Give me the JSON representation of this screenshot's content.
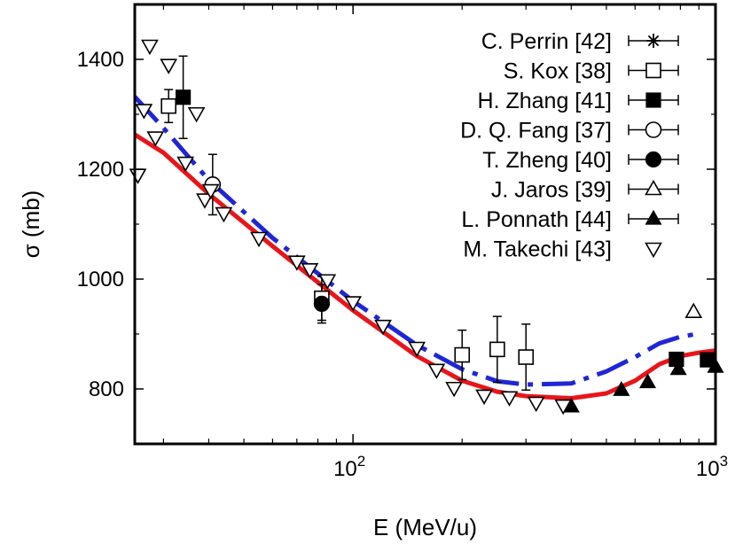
{
  "chart_data": {
    "type": "scatter",
    "x_scale": "log",
    "xlim": [
      25,
      1000
    ],
    "ylim": [
      700,
      1500
    ],
    "xlabel": "E (MeV/u)",
    "ylabel": "σ (mb)",
    "x_ticks": [
      {
        "value": 100,
        "base": "10",
        "exp": "2"
      },
      {
        "value": 1000,
        "base": "10",
        "exp": "3"
      }
    ],
    "y_ticks": [
      {
        "value": 800,
        "label": "800"
      },
      {
        "value": 1000,
        "label": "1000"
      },
      {
        "value": 1200,
        "label": "1200"
      },
      {
        "value": 1400,
        "label": "1400"
      }
    ],
    "series": [
      {
        "name": "C. Perrin [42]",
        "marker": "asterisk",
        "points": []
      },
      {
        "name": "S. Kox [38]",
        "marker": "square-open",
        "points": [
          [
            31,
            1315,
            30
          ],
          [
            82,
            965,
            40
          ],
          [
            200,
            862,
            45
          ],
          [
            250,
            872,
            60
          ],
          [
            300,
            858,
            60
          ]
        ]
      },
      {
        "name": "H. Zhang [41]",
        "marker": "square-filled",
        "points": [
          [
            34,
            1331,
            75
          ],
          [
            780,
            854,
            0
          ],
          [
            950,
            853,
            0
          ]
        ]
      },
      {
        "name": "D. Q. Fang [37]",
        "marker": "circle-open",
        "points": [
          [
            41,
            1172,
            55
          ]
        ]
      },
      {
        "name": "T. Zheng [40]",
        "marker": "circle-filled",
        "points": [
          [
            82,
            955,
            35
          ]
        ]
      },
      {
        "name": "J. Jaros [39]",
        "marker": "triangle-up-open",
        "points": [
          [
            870,
            940,
            0
          ]
        ]
      },
      {
        "name": "L. Ponnath [44]",
        "marker": "triangle-up-filled",
        "points": [
          [
            400,
            768,
            0
          ],
          [
            550,
            798,
            0
          ],
          [
            650,
            812,
            0
          ],
          [
            790,
            836,
            0
          ],
          [
            1000,
            840,
            0
          ]
        ]
      },
      {
        "name": "M. Takechi [43]",
        "marker": "triangle-down-open",
        "points": [
          [
            25.5,
            1190,
            0
          ],
          [
            27.5,
            1425,
            0
          ],
          [
            26.5,
            1308,
            0
          ],
          [
            28.5,
            1258,
            0
          ],
          [
            31,
            1390,
            0
          ],
          [
            34.5,
            1212,
            0
          ],
          [
            37,
            1302,
            0
          ],
          [
            39,
            1145,
            0
          ],
          [
            40.5,
            1162,
            0
          ],
          [
            44,
            1120,
            0
          ],
          [
            55,
            1075,
            0
          ],
          [
            70,
            1032,
            0
          ],
          [
            76,
            1018,
            0
          ],
          [
            85,
            998,
            0
          ],
          [
            100,
            958,
            0
          ],
          [
            121,
            915,
            0
          ],
          [
            150,
            875,
            0
          ],
          [
            170,
            835,
            0
          ],
          [
            190,
            802,
            0
          ],
          [
            230,
            788,
            0
          ],
          [
            270,
            785,
            0
          ],
          [
            320,
            775,
            0
          ],
          [
            380,
            770,
            0
          ]
        ]
      }
    ],
    "curves": [
      {
        "name": "red-solid",
        "color": "#e8151b",
        "style": "solid",
        "points": [
          [
            25,
            1263
          ],
          [
            30,
            1230
          ],
          [
            40,
            1155
          ],
          [
            60,
            1060
          ],
          [
            100,
            943
          ],
          [
            150,
            860
          ],
          [
            200,
            815
          ],
          [
            250,
            795
          ],
          [
            300,
            787
          ],
          [
            400,
            783
          ],
          [
            500,
            792
          ],
          [
            600,
            815
          ],
          [
            700,
            845
          ],
          [
            800,
            860
          ],
          [
            900,
            866
          ],
          [
            1000,
            870
          ]
        ]
      },
      {
        "name": "blue-dashed",
        "color": "#1f26d6",
        "style": "dashed",
        "points": [
          [
            25,
            1332
          ],
          [
            30,
            1275
          ],
          [
            40,
            1180
          ],
          [
            60,
            1075
          ],
          [
            100,
            960
          ],
          [
            150,
            880
          ],
          [
            200,
            836
          ],
          [
            250,
            814
          ],
          [
            300,
            808
          ],
          [
            400,
            810
          ],
          [
            500,
            832
          ],
          [
            600,
            858
          ],
          [
            700,
            883
          ],
          [
            800,
            895
          ],
          [
            870,
            899
          ]
        ]
      }
    ]
  }
}
